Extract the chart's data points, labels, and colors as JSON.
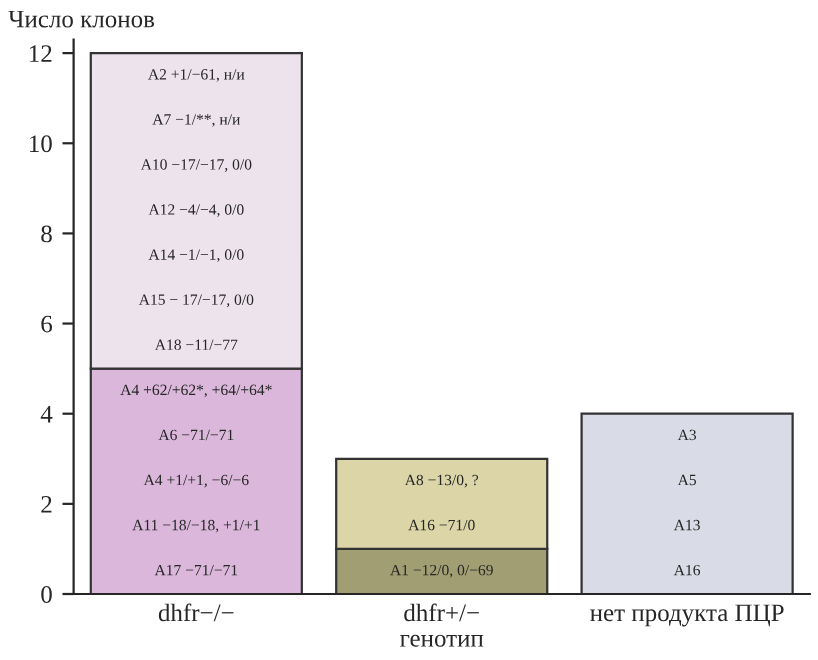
{
  "chart_data": {
    "type": "bar",
    "stacked": true,
    "ylabel": "Число клонов",
    "xlabel": "генотип",
    "categories": [
      "dhfr−/−",
      "dhfr+/−",
      "нет продукта ПЦР"
    ],
    "series": [
      {
        "colors": [
          "#dbb8db",
          "#a09e72",
          "#d9dce6"
        ],
        "values": [
          5,
          1,
          4
        ]
      },
      {
        "colors": [
          "#ede3ed",
          "#dcd5a8",
          "#d9dce6"
        ],
        "values": [
          7,
          2,
          null
        ]
      }
    ],
    "ylim": [
      0,
      12.3
    ],
    "yticks": [
      0,
      2,
      4,
      6,
      8,
      10,
      12
    ],
    "grid": false,
    "legend": false,
    "annotations": [
      "A2 +1/−61, н/и",
      "A7 −1/**, н/и",
      "A10 −17/−17, 0/0",
      "A12 −4/−4, 0/0",
      "A14 −1/−1, 0/0",
      "A15 − 17/−17, 0/0",
      "A18 −11/−77",
      "A4 +62/+62*, +64/+64*",
      "A6 −71/−71",
      "A4 +1/+1, −6/−6",
      "A11 −18/−18, +1/+1",
      "A17 −71/−71",
      "A8 −13/0, ?",
      "A16 −71/0",
      "A1 −12/0, 0/−69",
      "A3",
      "A5",
      "A13",
      "A16"
    ]
  }
}
